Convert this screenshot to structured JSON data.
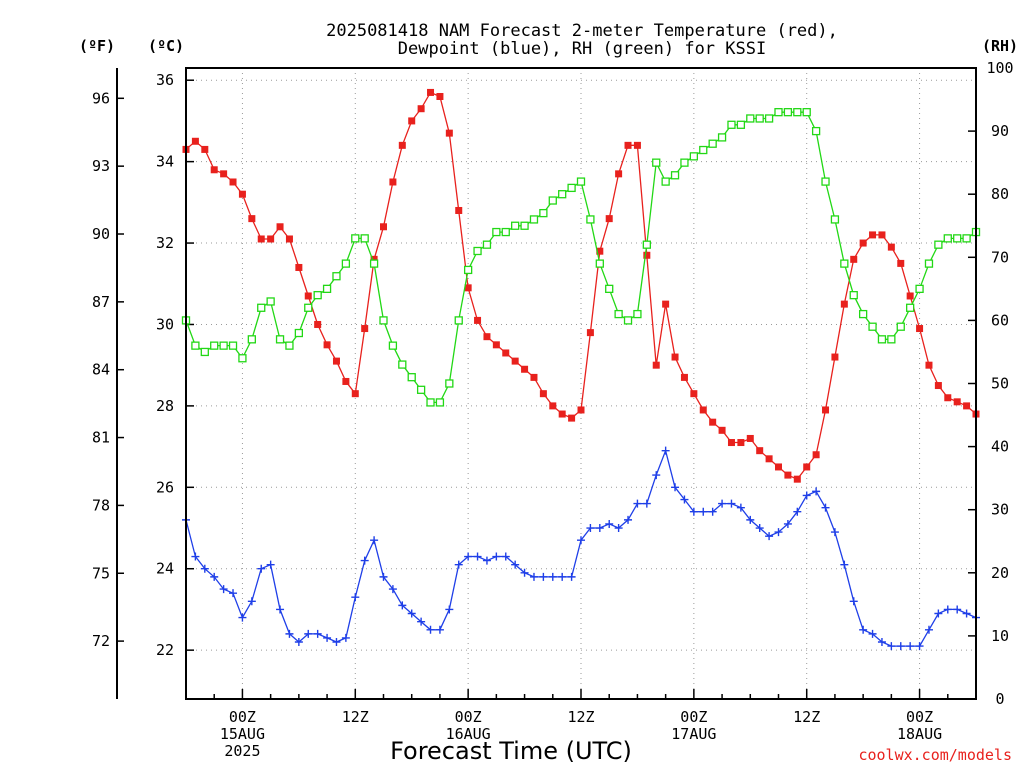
{
  "chart_data": {
    "type": "line",
    "title_line1": "2025081418 NAM Forecast 2-meter Temperature (red),",
    "title_line2": "Dewpoint (blue), RH (green) for KSSI",
    "xlabel": "Forecast Time (UTC)",
    "credit": "coolwx.com/models",
    "units": {
      "f": "(ºF)",
      "c": "(ºC)",
      "rh": "(RH)"
    },
    "x_ticks": [
      {
        "t": 6,
        "lines": [
          "00Z",
          "15AUG",
          "2025"
        ]
      },
      {
        "t": 18,
        "lines": [
          "12Z"
        ]
      },
      {
        "t": 30,
        "lines": [
          "00Z",
          "16AUG"
        ]
      },
      {
        "t": 42,
        "lines": [
          "12Z"
        ]
      },
      {
        "t": 54,
        "lines": [
          "00Z",
          "17AUG"
        ]
      },
      {
        "t": 66,
        "lines": [
          "12Z"
        ]
      },
      {
        "t": 78,
        "lines": [
          "00Z",
          "18AUG"
        ]
      }
    ],
    "xlim": [
      0,
      84
    ],
    "ylim_c": [
      20.8,
      36.3
    ],
    "ylim_rh": [
      0,
      100
    ],
    "f_ticks": [
      72,
      75,
      78,
      81,
      84,
      87,
      90,
      93,
      96
    ],
    "c_ticks": [
      22,
      24,
      26,
      28,
      30,
      32,
      34,
      36
    ],
    "rh_ticks": [
      0,
      10,
      20,
      30,
      40,
      50,
      60,
      70,
      80,
      90,
      100
    ],
    "hours": [
      0,
      1,
      2,
      3,
      4,
      5,
      6,
      7,
      8,
      9,
      10,
      11,
      12,
      13,
      14,
      15,
      16,
      17,
      18,
      19,
      20,
      21,
      22,
      23,
      24,
      25,
      26,
      27,
      28,
      29,
      30,
      31,
      32,
      33,
      34,
      35,
      36,
      37,
      38,
      39,
      40,
      41,
      42,
      43,
      44,
      45,
      46,
      47,
      48,
      49,
      50,
      51,
      52,
      53,
      54,
      55,
      56,
      57,
      58,
      59,
      60,
      61,
      62,
      63,
      64,
      65,
      66,
      67,
      68,
      69,
      70,
      71,
      72,
      73,
      74,
      75,
      76,
      77,
      78,
      79,
      80,
      81,
      82,
      83,
      84
    ],
    "series": [
      {
        "name": "Temperature",
        "color": "#e8211d",
        "axis": "c",
        "marker": "filled-square",
        "values": [
          34.3,
          34.5,
          34.3,
          33.8,
          33.7,
          33.5,
          33.2,
          32.6,
          32.1,
          32.1,
          32.4,
          32.1,
          31.4,
          30.7,
          30.0,
          29.5,
          29.1,
          28.6,
          28.3,
          29.9,
          31.6,
          32.4,
          33.5,
          34.4,
          35.0,
          35.3,
          35.7,
          35.6,
          34.7,
          32.8,
          30.9,
          30.1,
          29.7,
          29.5,
          29.3,
          29.1,
          28.9,
          28.7,
          28.3,
          28.0,
          27.8,
          27.7,
          27.9,
          29.8,
          31.8,
          32.6,
          33.7,
          34.4,
          34.4,
          31.7,
          29.0,
          30.5,
          29.2,
          28.7,
          28.3,
          27.9,
          27.6,
          27.4,
          27.1,
          27.1,
          27.2,
          26.9,
          26.7,
          26.5,
          26.3,
          26.2,
          26.5,
          26.8,
          27.9,
          29.2,
          30.5,
          31.6,
          32.0,
          32.2,
          32.2,
          31.9,
          31.5,
          30.7,
          29.9,
          29.0,
          28.5,
          28.2,
          28.1,
          28.0,
          27.8
        ]
      },
      {
        "name": "Dewpoint",
        "color": "#1f3fe8",
        "axis": "c",
        "marker": "plus",
        "values": [
          25.2,
          24.3,
          24.0,
          23.8,
          23.5,
          23.4,
          22.8,
          23.2,
          24.0,
          24.1,
          23.0,
          22.4,
          22.2,
          22.4,
          22.4,
          22.3,
          22.2,
          22.3,
          23.3,
          24.2,
          24.7,
          23.8,
          23.5,
          23.1,
          22.9,
          22.7,
          22.5,
          22.5,
          23.0,
          24.1,
          24.3,
          24.3,
          24.2,
          24.3,
          24.3,
          24.1,
          23.9,
          23.8,
          23.8,
          23.8,
          23.8,
          23.8,
          24.7,
          25.0,
          25.0,
          25.1,
          25.0,
          25.2,
          25.6,
          25.6,
          26.3,
          26.9,
          26.0,
          25.7,
          25.4,
          25.4,
          25.4,
          25.6,
          25.6,
          25.5,
          25.2,
          25.0,
          24.8,
          24.9,
          25.1,
          25.4,
          25.8,
          25.9,
          25.5,
          24.9,
          24.1,
          23.2,
          22.5,
          22.4,
          22.2,
          22.1,
          22.1,
          22.1,
          22.1,
          22.5,
          22.9,
          23.0,
          23.0,
          22.9,
          22.8
        ]
      },
      {
        "name": "RH",
        "color": "#22d815",
        "axis": "rh",
        "marker": "open-square",
        "values": [
          60,
          56,
          55,
          56,
          56,
          56,
          54,
          57,
          62,
          63,
          57,
          56,
          58,
          62,
          64,
          65,
          67,
          69,
          73,
          73,
          69,
          60,
          56,
          53,
          51,
          49,
          47,
          47,
          50,
          60,
          68,
          71,
          72,
          74,
          74,
          75,
          75,
          76,
          77,
          79,
          80,
          81,
          82,
          76,
          69,
          65,
          61,
          60,
          61,
          72,
          85,
          82,
          83,
          85,
          86,
          87,
          88,
          89,
          91,
          91,
          92,
          92,
          92,
          93,
          93,
          93,
          93,
          90,
          82,
          76,
          69,
          64,
          61,
          59,
          57,
          57,
          59,
          62,
          65,
          69,
          72,
          73,
          73,
          73,
          74
        ]
      }
    ],
    "grid": true
  }
}
